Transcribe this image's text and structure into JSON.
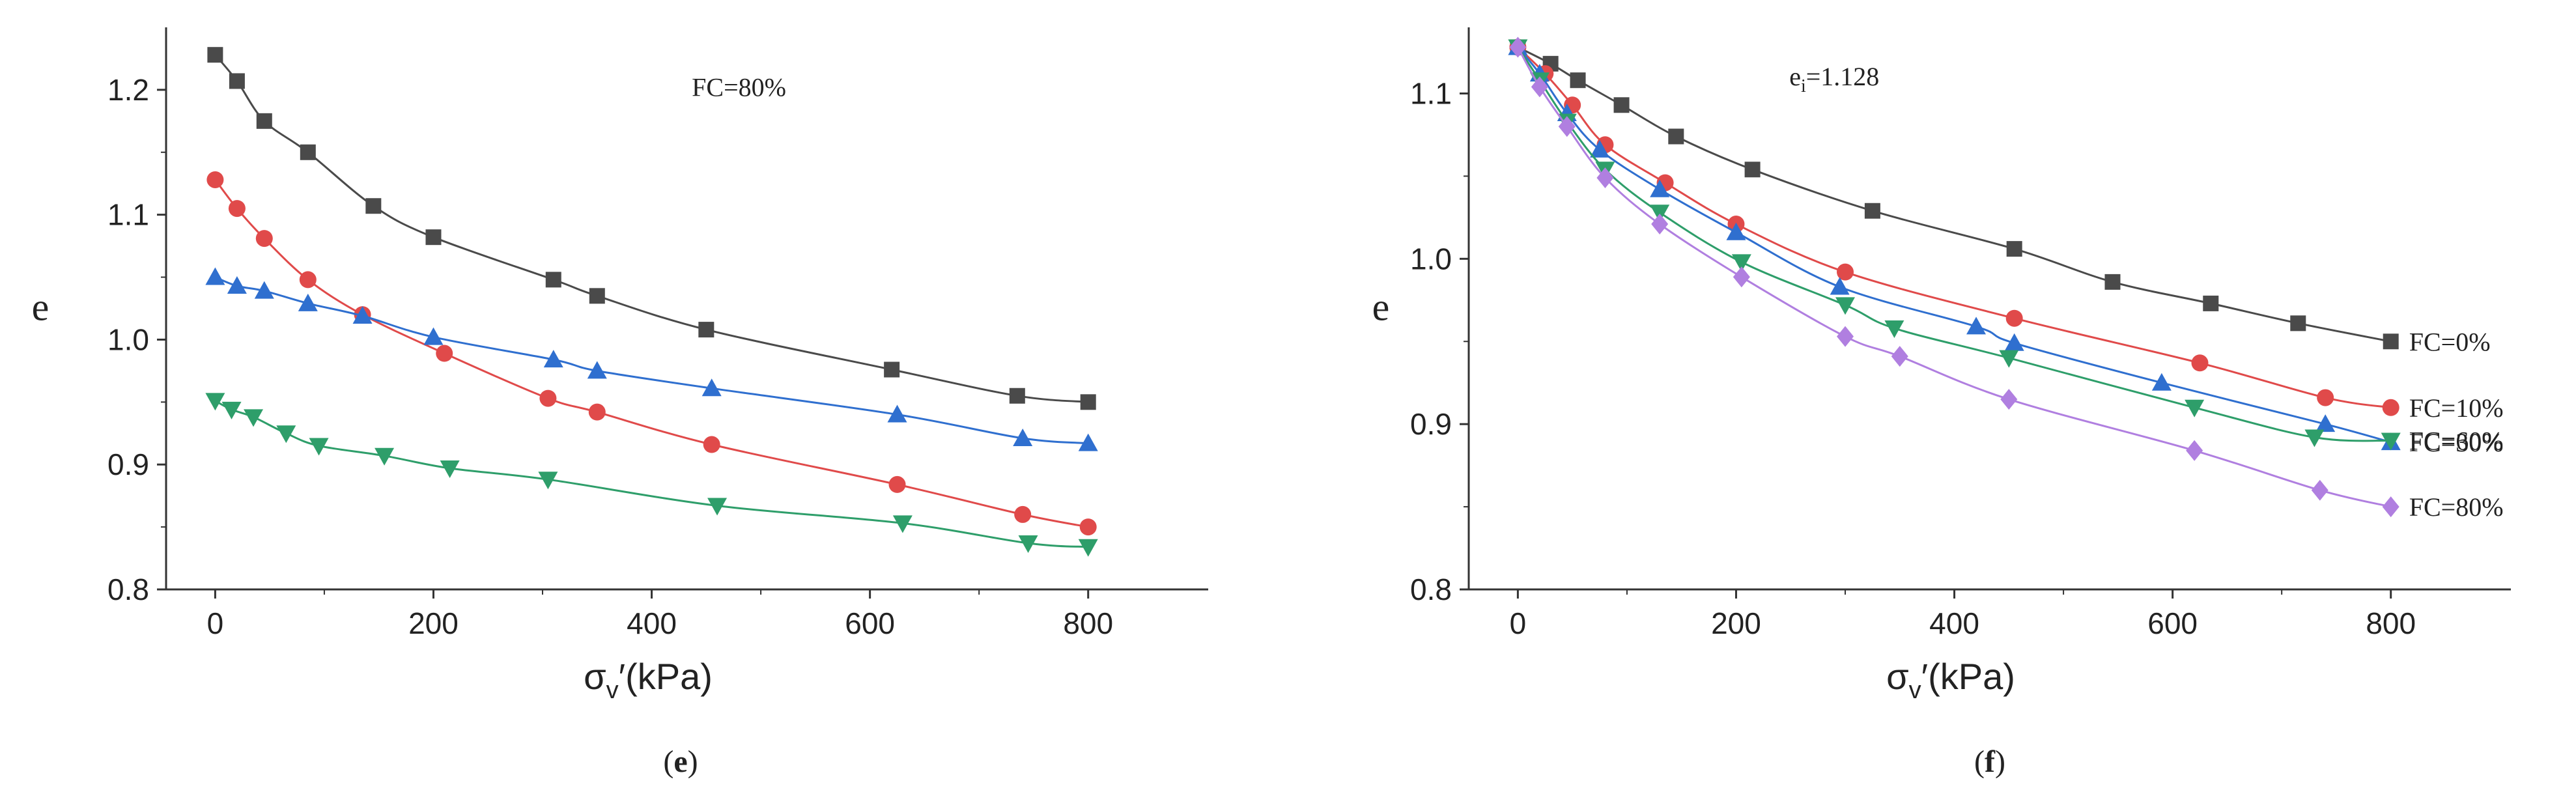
{
  "chart_data": [
    {
      "type": "line",
      "panel": "e",
      "panel_label_prefix": "(",
      "panel_label_suffix": ")",
      "xlabel": "σv′(kPa)",
      "xlabel_main": "σ",
      "xlabel_sub": "v",
      "xlabel_rest": "′(kPa)",
      "ylabel": "e",
      "xlim": [
        -45,
        910
      ],
      "ylim": [
        0.8,
        1.25
      ],
      "xticks": [
        0,
        200,
        400,
        600,
        800
      ],
      "yticks": [
        0.8,
        0.9,
        1.0,
        1.1,
        1.2
      ],
      "ytick_labels": [
        "0.8",
        "0.9",
        "1.0",
        "1.1",
        "1.2"
      ],
      "annotation": "FC=80%",
      "annotation_at": [
        480,
        1.195
      ],
      "series": [
        {
          "name": "series-1",
          "marker": "square",
          "color": "#4a4a4a",
          "x": [
            0,
            20,
            45,
            85,
            145,
            200,
            310,
            350,
            450,
            620,
            735,
            800
          ],
          "y": [
            1.228,
            1.207,
            1.175,
            1.15,
            1.107,
            1.082,
            1.048,
            1.035,
            1.008,
            0.976,
            0.955,
            0.95
          ]
        },
        {
          "name": "series-2",
          "marker": "circle",
          "color": "#e04a4a",
          "x": [
            0,
            20,
            45,
            85,
            135,
            210,
            305,
            350,
            455,
            625,
            740,
            800
          ],
          "y": [
            1.128,
            1.105,
            1.081,
            1.048,
            1.02,
            0.989,
            0.953,
            0.942,
            0.916,
            0.884,
            0.86,
            0.85
          ]
        },
        {
          "name": "series-3",
          "marker": "triangle-up",
          "color": "#2f6fcf",
          "x": [
            0,
            20,
            45,
            85,
            135,
            200,
            310,
            350,
            455,
            625,
            740,
            800
          ],
          "y": [
            1.05,
            1.043,
            1.039,
            1.029,
            1.019,
            1.002,
            0.984,
            0.975,
            0.961,
            0.94,
            0.921,
            0.917
          ]
        },
        {
          "name": "series-4",
          "marker": "triangle-down",
          "color": "#2e9e6a",
          "x": [
            0,
            15,
            35,
            65,
            95,
            155,
            215,
            305,
            460,
            630,
            745,
            800
          ],
          "y": [
            0.951,
            0.944,
            0.938,
            0.925,
            0.915,
            0.907,
            0.897,
            0.888,
            0.867,
            0.853,
            0.837,
            0.834
          ]
        }
      ]
    },
    {
      "type": "line",
      "panel": "f",
      "panel_label_prefix": "(",
      "panel_label_suffix": ")",
      "xlabel": "σv′(kPa)",
      "xlabel_main": "σ",
      "xlabel_sub": "v",
      "xlabel_rest": "′(kPa)",
      "ylabel": "e",
      "xlim": [
        -45,
        910
      ],
      "ylim": [
        0.8,
        1.14
      ],
      "xticks": [
        0,
        200,
        400,
        600,
        800
      ],
      "yticks": [
        0.8,
        0.9,
        1.0,
        1.1
      ],
      "ytick_labels": [
        "0.8",
        "0.9",
        "1.0",
        "1.1"
      ],
      "annotation": "ei=1.128",
      "annotation_main": "e",
      "annotation_sub": "i",
      "annotation_rest": "=1.128",
      "annotation_at": [
        290,
        1.105
      ],
      "legend_position": "right",
      "series": [
        {
          "name": "FC=0%",
          "marker": "square",
          "color": "#4a4a4a",
          "x": [
            0,
            30,
            55,
            95,
            145,
            215,
            325,
            455,
            545,
            635,
            715,
            800
          ],
          "y": [
            1.128,
            1.118,
            1.108,
            1.093,
            1.074,
            1.054,
            1.029,
            1.006,
            0.986,
            0.973,
            0.961,
            0.95
          ]
        },
        {
          "name": "FC=10%",
          "marker": "circle",
          "color": "#e04a4a",
          "x": [
            0,
            25,
            50,
            80,
            135,
            200,
            300,
            455,
            625,
            740,
            800
          ],
          "y": [
            1.128,
            1.112,
            1.093,
            1.069,
            1.046,
            1.021,
            0.992,
            0.964,
            0.937,
            0.916,
            0.91
          ]
        },
        {
          "name": "FC=30%",
          "marker": "triangle-up",
          "color": "#2f6fcf",
          "x": [
            0,
            20,
            45,
            75,
            130,
            200,
            295,
            420,
            455,
            590,
            740,
            800
          ],
          "y": [
            1.128,
            1.112,
            1.088,
            1.066,
            1.042,
            1.016,
            0.983,
            0.959,
            0.949,
            0.925,
            0.9,
            0.889
          ]
        },
        {
          "name": "FC=60%",
          "marker": "triangle-down",
          "color": "#2e9e6a",
          "x": [
            0,
            20,
            45,
            80,
            130,
            205,
            300,
            345,
            450,
            620,
            730,
            800
          ],
          "y": [
            1.128,
            1.108,
            1.083,
            1.054,
            1.028,
            0.998,
            0.972,
            0.958,
            0.94,
            0.91,
            0.892,
            0.89
          ]
        },
        {
          "name": "FC=80%",
          "marker": "diamond",
          "color": "#b07fe0",
          "x": [
            0,
            20,
            45,
            80,
            130,
            205,
            300,
            350,
            450,
            620,
            735,
            800
          ],
          "y": [
            1.128,
            1.104,
            1.08,
            1.049,
            1.021,
            0.989,
            0.953,
            0.941,
            0.915,
            0.884,
            0.86,
            0.85
          ]
        }
      ]
    }
  ]
}
